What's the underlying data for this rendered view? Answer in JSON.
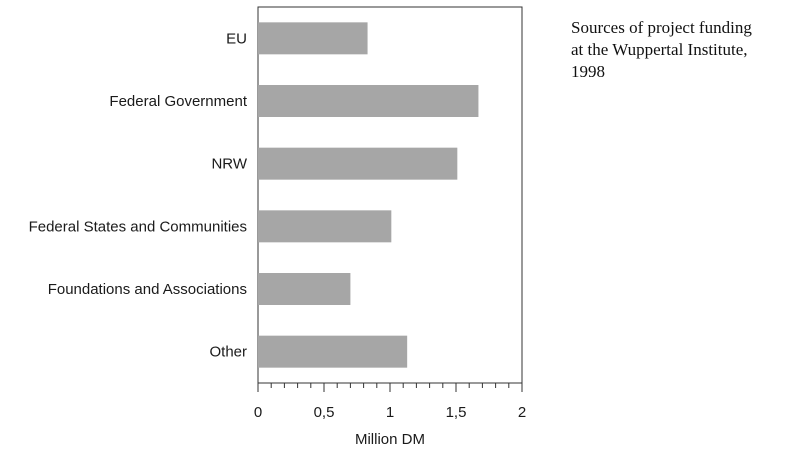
{
  "caption": {
    "lines": [
      "Sources of project funding",
      "at the Wuppertal Institute,",
      "1998"
    ]
  },
  "chart_data": {
    "type": "bar",
    "orientation": "horizontal",
    "categories": [
      "EU",
      "Federal Government",
      "NRW",
      "Federal States and Communities",
      "Foundations and Associations",
      "Other"
    ],
    "values": [
      0.83,
      1.67,
      1.51,
      1.01,
      0.7,
      1.13
    ],
    "xlabel": "Million DM",
    "ylabel": "",
    "xlim": [
      0,
      2
    ],
    "ticks": [
      "0",
      "0,5",
      "1",
      "1,5",
      "2"
    ],
    "grid": false,
    "colors": {
      "bar": "#a6a6a6",
      "axis": "#333333"
    }
  }
}
